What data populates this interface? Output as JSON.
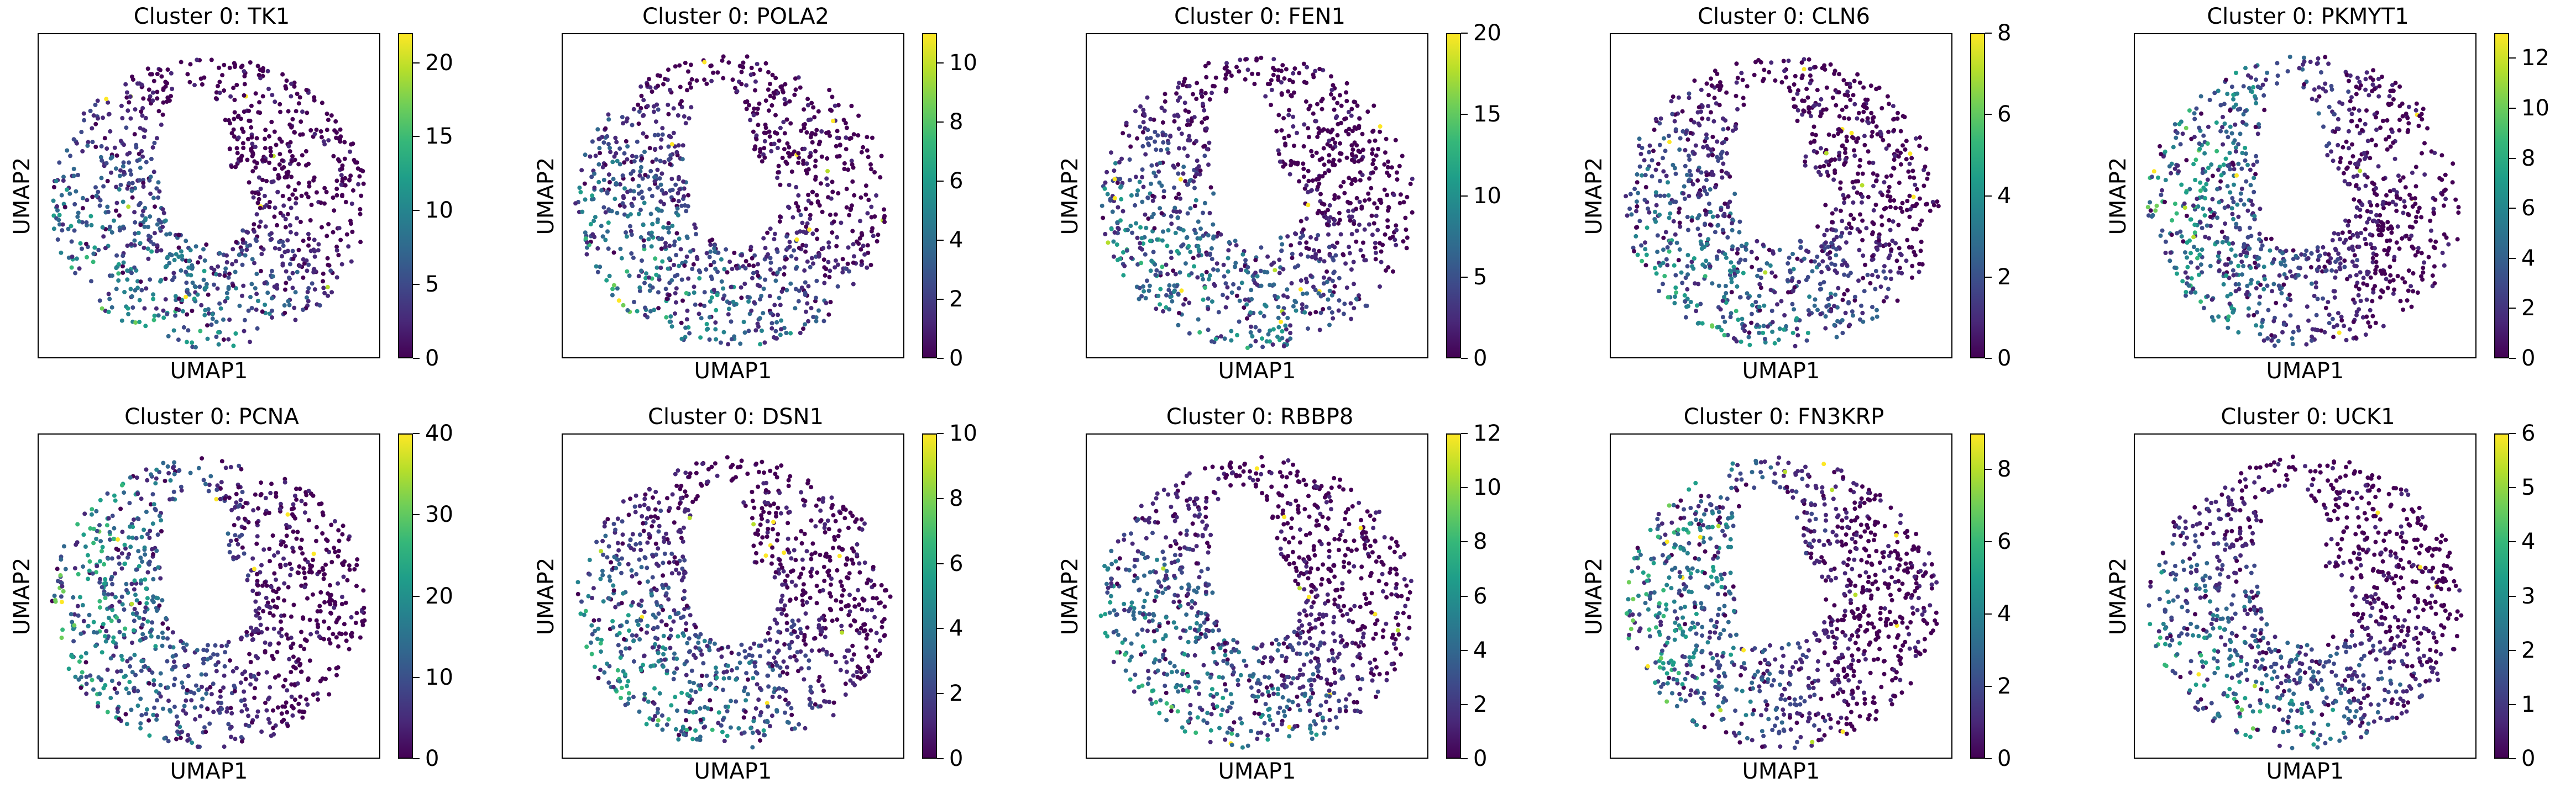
{
  "figure": {
    "panels": [
      {
        "title": "Cluster 0: TK1",
        "xlabel": "UMAP1",
        "ylabel": "UMAP2",
        "ticks": [
          "0",
          "5",
          "10",
          "15",
          "20"
        ],
        "vmax": 22,
        "tick_values": [
          0,
          5,
          10,
          15,
          20
        ],
        "hot_zone": "lower-left"
      },
      {
        "title": "Cluster 0: POLA2",
        "xlabel": "UMAP1",
        "ylabel": "UMAP2",
        "ticks": [
          "0",
          "2",
          "4",
          "6",
          "8",
          "10"
        ],
        "vmax": 11,
        "tick_values": [
          0,
          2,
          4,
          6,
          8,
          10
        ],
        "hot_zone": "lower-left"
      },
      {
        "title": "Cluster 0: FEN1",
        "xlabel": "UMAP1",
        "ylabel": "UMAP2",
        "ticks": [
          "0",
          "5",
          "10",
          "15",
          "20"
        ],
        "vmax": 20,
        "tick_values": [
          0,
          5,
          10,
          15,
          20
        ],
        "hot_zone": "lower-left"
      },
      {
        "title": "Cluster 0: CLN6",
        "xlabel": "UMAP1",
        "ylabel": "UMAP2",
        "ticks": [
          "0",
          "2",
          "4",
          "6",
          "8"
        ],
        "vmax": 8,
        "tick_values": [
          0,
          2,
          4,
          6,
          8
        ],
        "hot_zone": "lower-left"
      },
      {
        "title": "Cluster 0: PKMYT1",
        "xlabel": "UMAP1",
        "ylabel": "UMAP2",
        "ticks": [
          "0",
          "2",
          "4",
          "6",
          "8",
          "10",
          "12"
        ],
        "vmax": 13,
        "tick_values": [
          0,
          2,
          4,
          6,
          8,
          10,
          12
        ],
        "hot_zone": "left"
      },
      {
        "title": "Cluster 0: PCNA",
        "xlabel": "UMAP1",
        "ylabel": "UMAP2",
        "ticks": [
          "0",
          "10",
          "20",
          "30",
          "40"
        ],
        "vmax": 40,
        "tick_values": [
          0,
          10,
          20,
          30,
          40
        ],
        "hot_zone": "left"
      },
      {
        "title": "Cluster 0: DSN1",
        "xlabel": "UMAP1",
        "ylabel": "UMAP2",
        "ticks": [
          "0",
          "2",
          "4",
          "6",
          "8",
          "10"
        ],
        "vmax": 10,
        "tick_values": [
          0,
          2,
          4,
          6,
          8,
          10
        ],
        "hot_zone": "lower-left"
      },
      {
        "title": "Cluster 0: RBBP8",
        "xlabel": "UMAP1",
        "ylabel": "UMAP2",
        "ticks": [
          "0",
          "2",
          "4",
          "6",
          "8",
          "10",
          "12"
        ],
        "vmax": 12,
        "tick_values": [
          0,
          2,
          4,
          6,
          8,
          10,
          12
        ],
        "hot_zone": "lower-left"
      },
      {
        "title": "Cluster 0: FN3KRP",
        "xlabel": "UMAP1",
        "ylabel": "UMAP2",
        "ticks": [
          "0",
          "2",
          "4",
          "6",
          "8"
        ],
        "vmax": 9,
        "tick_values": [
          0,
          2,
          4,
          6,
          8
        ],
        "hot_zone": "left"
      },
      {
        "title": "Cluster 0: UCK1",
        "xlabel": "UMAP1",
        "ylabel": "UMAP2",
        "ticks": [
          "0",
          "1",
          "2",
          "3",
          "4",
          "5",
          "6"
        ],
        "vmax": 6,
        "tick_values": [
          0,
          1,
          2,
          3,
          4,
          5,
          6
        ],
        "hot_zone": "lower-left"
      }
    ]
  },
  "chart_data": {
    "type": "scatter",
    "layout": "2 rows x 5 columns grid of UMAP embedding panels",
    "colormap": "viridis",
    "colormap_colors": [
      "#440154",
      "#482878",
      "#3e4989",
      "#31688e",
      "#26828e",
      "#1f9e89",
      "#35b779",
      "#6ece58",
      "#b5de2b",
      "#fde725"
    ],
    "xlabel": "UMAP1",
    "ylabel": "UMAP2",
    "axis_ticks": "none",
    "grid": false,
    "legend": "colorbar-right",
    "note": "Each panel colors the same UMAP embedding (ring-shaped cloud with a hole upper-center) by gene expression; higher expression concentrated in the lower-left part of the ring.",
    "series": [
      {
        "name": "Cluster 0: TK1",
        "colorbar_range": [
          0,
          22
        ]
      },
      {
        "name": "Cluster 0: POLA2",
        "colorbar_range": [
          0,
          11
        ]
      },
      {
        "name": "Cluster 0: FEN1",
        "colorbar_range": [
          0,
          20
        ]
      },
      {
        "name": "Cluster 0: CLN6",
        "colorbar_range": [
          0,
          8
        ]
      },
      {
        "name": "Cluster 0: PKMYT1",
        "colorbar_range": [
          0,
          13
        ]
      },
      {
        "name": "Cluster 0: PCNA",
        "colorbar_range": [
          0,
          40
        ]
      },
      {
        "name": "Cluster 0: DSN1",
        "colorbar_range": [
          0,
          10
        ]
      },
      {
        "name": "Cluster 0: RBBP8",
        "colorbar_range": [
          0,
          12
        ]
      },
      {
        "name": "Cluster 0: FN3KRP",
        "colorbar_range": [
          0,
          9
        ]
      },
      {
        "name": "Cluster 0: UCK1",
        "colorbar_range": [
          0,
          6
        ]
      }
    ]
  }
}
